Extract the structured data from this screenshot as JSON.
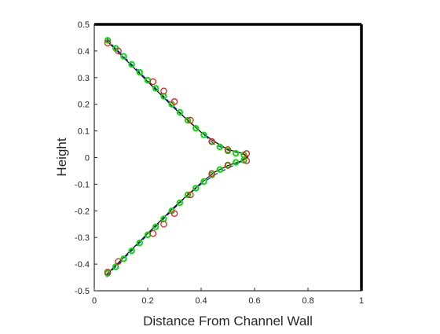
{
  "chart_data": {
    "type": "line",
    "title": "",
    "xlabel": "Distance From Channel Wall",
    "ylabel": "Height",
    "xlim": [
      0,
      1
    ],
    "ylim": [
      -0.5,
      0.5
    ],
    "xticks": [
      0,
      0.2,
      0.4,
      0.6,
      0.8,
      1
    ],
    "xtick_labels": [
      "0",
      "0.2",
      "0.4",
      "0.6",
      "0.8",
      "1"
    ],
    "yticks": [
      -0.5,
      -0.4,
      -0.3,
      -0.2,
      -0.1,
      0,
      0.1,
      0.2,
      0.3,
      0.4,
      0.5
    ],
    "ytick_labels": [
      "-0.5",
      "-0.4",
      "-0.3",
      "-0.2",
      "-0.1",
      "0",
      "0.1",
      "0.2",
      "0.3",
      "0.4",
      "0.5"
    ],
    "grid": false,
    "box": true,
    "legend": "none",
    "series": [
      {
        "style": "dashed",
        "color": "#1f1fd6",
        "x": [
          0.045,
          0.06,
          0.1,
          0.15,
          0.2,
          0.25,
          0.3,
          0.35,
          0.4,
          0.45,
          0.5,
          0.55,
          0.58,
          0.55,
          0.5,
          0.45,
          0.4,
          0.35,
          0.3,
          0.25,
          0.2,
          0.15,
          0.1,
          0.06,
          0.045
        ],
        "y": [
          0.45,
          0.43,
          0.39,
          0.34,
          0.29,
          0.24,
          0.19,
          0.14,
          0.095,
          0.05,
          0.028,
          0.015,
          0.004,
          -0.015,
          -0.04,
          -0.065,
          -0.1,
          -0.14,
          -0.19,
          -0.24,
          -0.29,
          -0.34,
          -0.39,
          -0.43,
          -0.45
        ]
      },
      {
        "style": "solid",
        "color": "#000000",
        "x": [
          0.045,
          0.06,
          0.1,
          0.15,
          0.2,
          0.25,
          0.3,
          0.35,
          0.4,
          0.45,
          0.5,
          0.55,
          0.575,
          0.55,
          0.5,
          0.45,
          0.4,
          0.35,
          0.3,
          0.25,
          0.2,
          0.15,
          0.1,
          0.06,
          0.045
        ],
        "y": [
          0.44,
          0.425,
          0.385,
          0.335,
          0.285,
          0.235,
          0.185,
          0.14,
          0.095,
          0.06,
          0.03,
          0.017,
          0.005,
          -0.013,
          -0.03,
          -0.055,
          -0.095,
          -0.14,
          -0.185,
          -0.235,
          -0.285,
          -0.335,
          -0.385,
          -0.425,
          -0.44
        ]
      },
      {
        "style": "markers",
        "marker": "circle",
        "color": "#00e000",
        "x": [
          0.05,
          0.08,
          0.11,
          0.14,
          0.17,
          0.2,
          0.23,
          0.26,
          0.29,
          0.32,
          0.35,
          0.38,
          0.41,
          0.44,
          0.47,
          0.5,
          0.53,
          0.56,
          0.56,
          0.53,
          0.5,
          0.47,
          0.44,
          0.41,
          0.38,
          0.35,
          0.32,
          0.29,
          0.26,
          0.23,
          0.2,
          0.17,
          0.14,
          0.11,
          0.08,
          0.05
        ],
        "y": [
          0.44,
          0.41,
          0.38,
          0.35,
          0.32,
          0.29,
          0.26,
          0.23,
          0.2,
          0.17,
          0.14,
          0.11,
          0.085,
          0.06,
          0.04,
          0.025,
          0.016,
          0.01,
          -0.01,
          -0.018,
          -0.028,
          -0.045,
          -0.065,
          -0.09,
          -0.115,
          -0.14,
          -0.17,
          -0.2,
          -0.23,
          -0.26,
          -0.29,
          -0.32,
          -0.35,
          -0.38,
          -0.41,
          -0.435
        ]
      },
      {
        "style": "markers",
        "marker": "circle-open",
        "color": "#e02020",
        "x": [
          0.05,
          0.09,
          0.22,
          0.26,
          0.3,
          0.36,
          0.44,
          0.5,
          0.57,
          0.57,
          0.5,
          0.44,
          0.36,
          0.3,
          0.26,
          0.22,
          0.09,
          0.05
        ],
        "y": [
          0.43,
          0.4,
          0.285,
          0.25,
          0.21,
          0.14,
          0.06,
          0.03,
          0.015,
          -0.012,
          -0.03,
          -0.06,
          -0.14,
          -0.21,
          -0.25,
          -0.285,
          -0.39,
          -0.43
        ]
      }
    ]
  }
}
